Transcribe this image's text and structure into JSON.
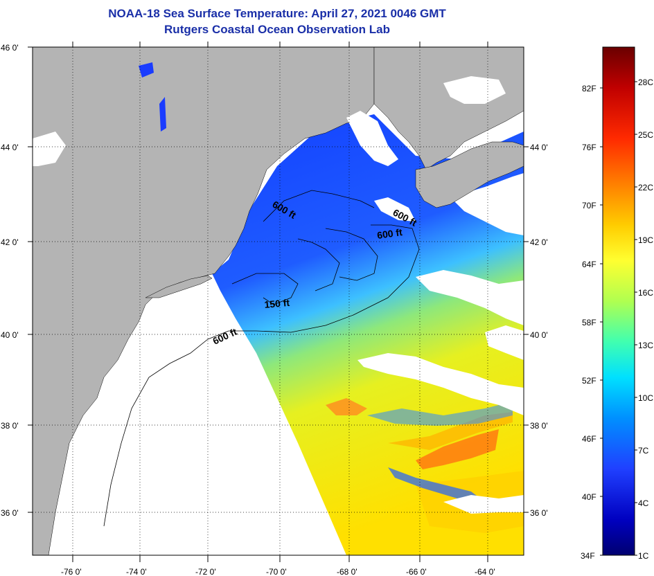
{
  "header": {
    "title": "NOAA-18 Sea Surface Temperature:  April 27, 2021 0046 GMT",
    "subtitle": "Rutgers Coastal Ocean Observation Lab"
  },
  "axes": {
    "longitude_labels": [
      "-76 0'",
      "-74 0'",
      "-72 0'",
      "-70 0'",
      "-68 0'",
      "-66 0'",
      "-64 0'"
    ],
    "latitude_labels_left": [
      "46 0'",
      "44 0'",
      "42 0'",
      "40 0'",
      "38 0'",
      "36 0'"
    ],
    "latitude_labels_right": [
      "44 0'",
      "42 0'",
      "40 0'",
      "38 0'",
      "36 0'"
    ]
  },
  "contours": [
    {
      "label": "600 ft"
    },
    {
      "label": "600 ft"
    },
    {
      "label": "600 ft"
    },
    {
      "label": "150 ft"
    },
    {
      "label": "600 ft"
    }
  ],
  "colorbar": {
    "fahrenheit_labels": [
      "82F",
      "76F",
      "70F",
      "64F",
      "58F",
      "52F",
      "46F",
      "40F",
      "34F"
    ],
    "celsius_labels": [
      "28C",
      "25C",
      "22C",
      "19C",
      "16C",
      "13C",
      "10C",
      "7C",
      "4C",
      "1C"
    ],
    "colors": [
      "#7a0000",
      "#c00000",
      "#ff2a00",
      "#ff7a00",
      "#ffc800",
      "#ffff2a",
      "#aaff55",
      "#40ffb0",
      "#00d8ff",
      "#008cff",
      "#1f3cff",
      "#0000c8",
      "#000060"
    ]
  },
  "colors": {
    "land": "#b4b4b4",
    "cloud": "#ffffff",
    "title": "#1a2fa8"
  }
}
